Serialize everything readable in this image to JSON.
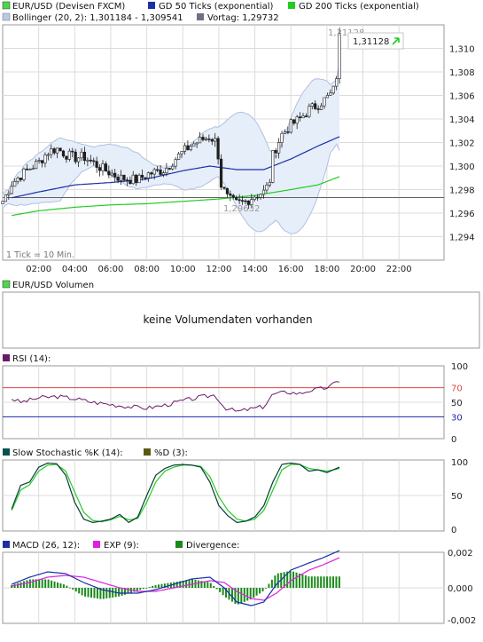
{
  "colors": {
    "bg": "#ffffff",
    "grid": "#dcdcdc",
    "border": "#999999",
    "candle": "#1f1f1f",
    "candle_up_body": "#ffffff",
    "gd50": "#1a2fa8",
    "gd200": "#22cc22",
    "bollinger": "#b8c8e8",
    "bollinger_fill": "#e6eefa",
    "vortag": "#606060",
    "rsi": "#6a1a6a",
    "rsi_70": "#dd4444",
    "rsi_30": "#2222aa",
    "stoch_k": "#0a3a3a",
    "stoch_d": "#22cc22",
    "macd": "#1a2fa8",
    "exp": "#dd22dd",
    "divergence": "#1a8a1a",
    "arrow": "#22cc22"
  },
  "price_panel": {
    "legend": {
      "symbol": "EUR/USD (Devisen FXCM)",
      "gd50": "GD 50 Ticks (exponential)",
      "gd200": "GD 200 Ticks (exponential)",
      "bollinger": "Bollinger (20, 2): 1,301184 - 1,309541",
      "vortag": "Vortag: 1,29732"
    },
    "last_price_label": "1,31128",
    "high_label": "1,31128",
    "low_label": "1,29632",
    "tick_note": "1 Tick = 10 Min.",
    "y_ticks": [
      "1,310",
      "1,308",
      "1,306",
      "1,304",
      "1,302",
      "1,300",
      "1,298",
      "1,296",
      "1,294"
    ],
    "x_ticks": [
      "02:00",
      "04:00",
      "06:00",
      "08:00",
      "10:00",
      "12:00",
      "14:00",
      "16:00",
      "18:00",
      "20:00",
      "22:00"
    ]
  },
  "volume_panel": {
    "legend": "EUR/USD Volumen",
    "message": "keine Volumendaten vorhanden"
  },
  "rsi_panel": {
    "legend": "RSI (14):",
    "y_ticks": [
      "100",
      "70",
      "50",
      "30",
      "0"
    ]
  },
  "stoch_panel": {
    "legend_k": "Slow Stochastic %K (14):",
    "legend_d": "%D (3):",
    "y_ticks": [
      "100",
      "50",
      "0"
    ]
  },
  "macd_panel": {
    "legend_macd": "MACD (26, 12):",
    "legend_exp": "EXP (9):",
    "legend_div": "Divergence:",
    "y_ticks": [
      "0,002",
      "0,000",
      "-0,002"
    ]
  },
  "chart_data": [
    {
      "type": "candlestick",
      "x_range_hours": [
        0,
        24.5
      ],
      "ylim": [
        1.292,
        1.312
      ],
      "vortag": 1.29732,
      "bollinger_range": [
        1.301184,
        1.309541
      ],
      "close_anchors": [
        [
          0.0,
          1.297
        ],
        [
          0.5,
          1.2985
        ],
        [
          1.0,
          1.2992
        ],
        [
          1.5,
          1.2998
        ],
        [
          2.0,
          1.3003
        ],
        [
          2.5,
          1.3012
        ],
        [
          3.0,
          1.3015
        ],
        [
          3.5,
          1.301
        ],
        [
          4.0,
          1.3007
        ],
        [
          4.5,
          1.3008
        ],
        [
          5.0,
          1.3003
        ],
        [
          5.5,
          1.2998
        ],
        [
          6.0,
          1.2994
        ],
        [
          6.5,
          1.299
        ],
        [
          7.0,
          1.2989
        ],
        [
          7.5,
          1.2988
        ],
        [
          8.0,
          1.2993
        ],
        [
          8.5,
          1.2995
        ],
        [
          9.0,
          1.2997
        ],
        [
          9.5,
          1.3005
        ],
        [
          10.0,
          1.3012
        ],
        [
          10.5,
          1.3018
        ],
        [
          11.0,
          1.3022
        ],
        [
          11.5,
          1.3025
        ],
        [
          11.9,
          1.302
        ],
        [
          12.1,
          1.2985
        ],
        [
          12.5,
          1.2972
        ],
        [
          13.0,
          1.2968
        ],
        [
          13.5,
          1.297
        ],
        [
          14.0,
          1.2975
        ],
        [
          14.5,
          1.2978
        ],
        [
          14.8,
          1.2985
        ],
        [
          15.0,
          1.301
        ],
        [
          15.5,
          1.3027
        ],
        [
          16.0,
          1.3035
        ],
        [
          16.5,
          1.304
        ],
        [
          17.0,
          1.3048
        ],
        [
          17.5,
          1.3052
        ],
        [
          18.0,
          1.3058
        ],
        [
          18.3,
          1.3062
        ],
        [
          18.5,
          1.307
        ],
        [
          18.7,
          1.31128
        ]
      ],
      "gd50_anchors": [
        [
          0.5,
          1.2973
        ],
        [
          2.0,
          1.2978
        ],
        [
          4.0,
          1.2984
        ],
        [
          6.0,
          1.2986
        ],
        [
          8.0,
          1.2989
        ],
        [
          10.0,
          1.2996
        ],
        [
          11.5,
          1.3
        ],
        [
          13.0,
          1.2997
        ],
        [
          14.5,
          1.2997
        ],
        [
          16.0,
          1.3006
        ],
        [
          17.5,
          1.3017
        ],
        [
          18.7,
          1.3025
        ]
      ],
      "gd200_anchors": [
        [
          0.5,
          1.2958
        ],
        [
          2.0,
          1.2962
        ],
        [
          4.0,
          1.2965
        ],
        [
          6.0,
          1.2967
        ],
        [
          8.0,
          1.2968
        ],
        [
          10.0,
          1.297
        ],
        [
          12.0,
          1.2972
        ],
        [
          14.0,
          1.2975
        ],
        [
          16.0,
          1.298
        ],
        [
          17.5,
          1.2984
        ],
        [
          18.7,
          1.2991
        ]
      ]
    },
    {
      "type": "line",
      "name": "RSI (14)",
      "ylim": [
        0,
        100
      ],
      "levels": [
        70,
        30
      ],
      "x": [
        0.5,
        1.0,
        2.0,
        3.0,
        4.0,
        5.0,
        6.0,
        7.0,
        8.0,
        9.0,
        10.0,
        11.0,
        11.8,
        12.3,
        13.0,
        13.8,
        14.5,
        15.0,
        15.8,
        16.5,
        17.0,
        17.8,
        18.2,
        18.7
      ],
      "values": [
        55,
        50,
        56,
        58,
        55,
        50,
        47,
        44,
        42,
        46,
        52,
        57,
        60,
        43,
        37,
        41,
        44,
        61,
        64,
        62,
        66,
        69,
        72,
        80
      ]
    },
    {
      "type": "line",
      "name": "Slow Stochastic",
      "ylim": [
        0,
        100
      ],
      "x": [
        0.5,
        1.0,
        1.5,
        2.0,
        2.5,
        3.0,
        3.5,
        4.0,
        4.5,
        5.0,
        5.5,
        6.0,
        6.5,
        7.0,
        7.5,
        8.0,
        8.5,
        9.0,
        9.5,
        10.0,
        10.5,
        11.0,
        11.5,
        12.0,
        12.5,
        13.0,
        13.5,
        14.0,
        14.5,
        15.0,
        15.5,
        16.0,
        16.5,
        17.0,
        17.5,
        18.0,
        18.7
      ],
      "k": [
        30,
        65,
        70,
        92,
        98,
        97,
        80,
        40,
        15,
        10,
        12,
        15,
        22,
        10,
        18,
        50,
        80,
        90,
        95,
        96,
        95,
        92,
        70,
        35,
        20,
        10,
        12,
        18,
        35,
        70,
        96,
        98,
        96,
        86,
        88,
        84,
        92
      ],
      "d": [
        28,
        58,
        66,
        86,
        95,
        96,
        86,
        55,
        25,
        13,
        11,
        14,
        19,
        14,
        16,
        40,
        70,
        86,
        92,
        95,
        95,
        93,
        78,
        48,
        28,
        15,
        12,
        15,
        28,
        58,
        88,
        96,
        96,
        90,
        88,
        86,
        90
      ]
    },
    {
      "type": "line",
      "name": "MACD (26, 12)",
      "ylim": [
        -0.002,
        0.002
      ],
      "x": [
        0.5,
        1.5,
        2.5,
        3.5,
        4.5,
        5.5,
        6.5,
        7.5,
        8.5,
        9.5,
        10.5,
        11.5,
        12.3,
        13.0,
        13.8,
        14.5,
        15.2,
        16.0,
        17.0,
        17.8,
        18.7
      ],
      "macd": [
        0.0002,
        0.0006,
        0.0009,
        0.0008,
        0.0003,
        -0.0001,
        -0.0003,
        -0.0003,
        -0.0001,
        0.0002,
        0.0005,
        0.0006,
        0.0,
        -0.0008,
        -0.001,
        -0.0008,
        0.0002,
        0.001,
        0.0014,
        0.0017,
        0.0021
      ],
      "exp": [
        0.0001,
        0.0003,
        0.0006,
        0.0007,
        0.0006,
        0.0003,
        0.0,
        -0.0002,
        -0.0002,
        0.0,
        0.0002,
        0.0004,
        0.0003,
        -0.0002,
        -0.0006,
        -0.0007,
        -0.0003,
        0.0004,
        0.001,
        0.0013,
        0.0017
      ]
    }
  ]
}
